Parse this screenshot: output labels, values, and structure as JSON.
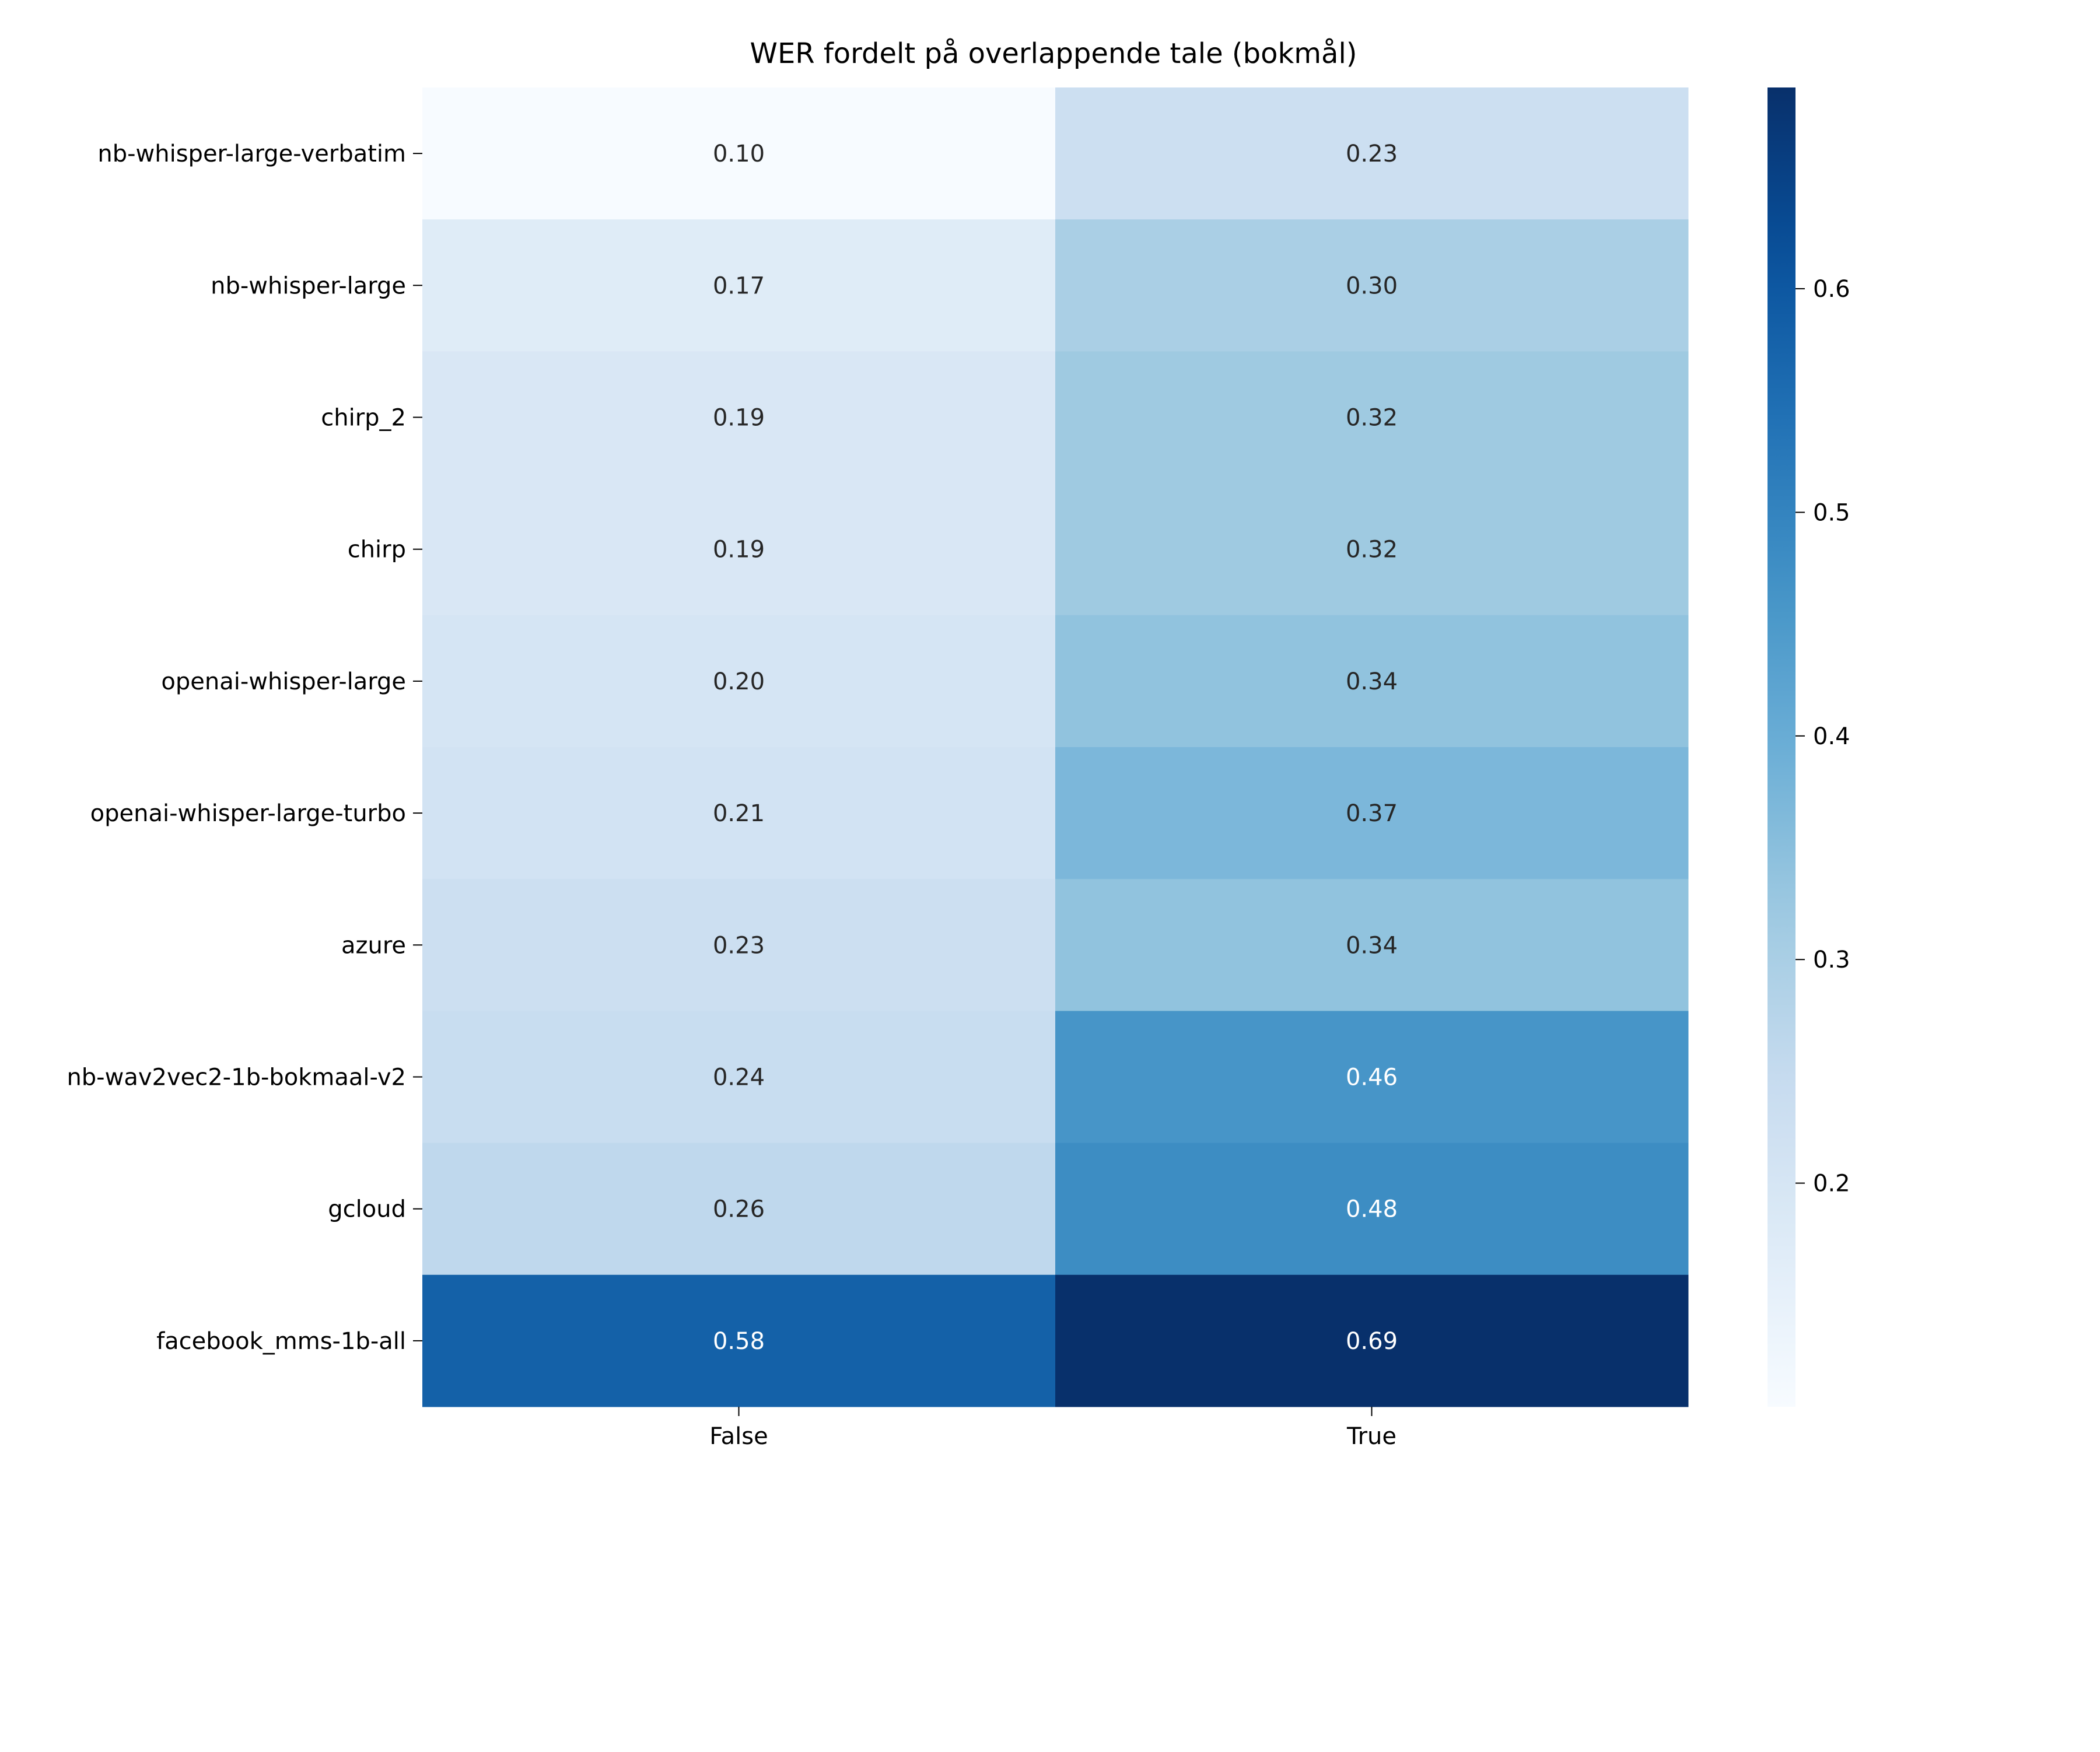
{
  "chart_data": {
    "type": "heatmap",
    "title": "WER fordelt på overlappende tale (bokmål)",
    "xlabel": "",
    "ylabel": "",
    "x_categories": [
      "False",
      "True"
    ],
    "y_categories": [
      "nb-whisper-large-verbatim",
      "nb-whisper-large",
      "chirp_2",
      "chirp",
      "openai-whisper-large",
      "openai-whisper-large-turbo",
      "azure",
      "nb-wav2vec2-1b-bokmaal-v2",
      "gcloud",
      "facebook_mms-1b-all"
    ],
    "values": [
      [
        0.1,
        0.23
      ],
      [
        0.17,
        0.3
      ],
      [
        0.19,
        0.32
      ],
      [
        0.19,
        0.32
      ],
      [
        0.2,
        0.34
      ],
      [
        0.21,
        0.37
      ],
      [
        0.23,
        0.34
      ],
      [
        0.24,
        0.46
      ],
      [
        0.26,
        0.48
      ],
      [
        0.58,
        0.69
      ]
    ],
    "value_labels": [
      [
        "0.10",
        "0.23"
      ],
      [
        "0.17",
        "0.30"
      ],
      [
        "0.19",
        "0.32"
      ],
      [
        "0.19",
        "0.32"
      ],
      [
        "0.20",
        "0.34"
      ],
      [
        "0.21",
        "0.37"
      ],
      [
        "0.23",
        "0.34"
      ],
      [
        "0.24",
        "0.46"
      ],
      [
        "0.26",
        "0.48"
      ],
      [
        "0.58",
        "0.69"
      ]
    ],
    "colormap": "Blues",
    "colorbar": {
      "range": [
        0.1,
        0.69
      ],
      "ticks": [
        0.2,
        0.3,
        0.4,
        0.5,
        0.6
      ],
      "tick_labels": [
        "0.2",
        "0.3",
        "0.4",
        "0.5",
        "0.6"
      ]
    },
    "grid": false,
    "legend": "colorbar-right"
  }
}
